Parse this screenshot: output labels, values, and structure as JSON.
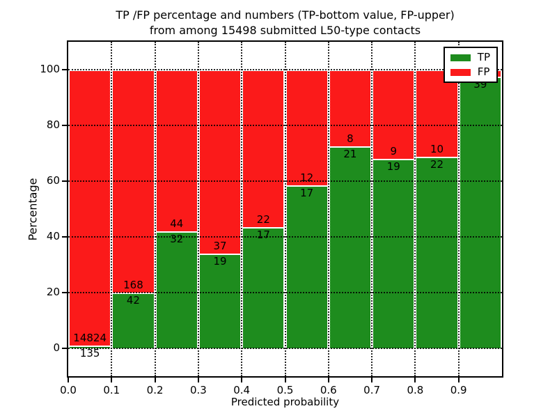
{
  "title": {
    "line1": "TP /FP percentage and numbers (TP-bottom value, FP-upper)",
    "line2": "from among 15498 submitted L50-type contacts"
  },
  "axes": {
    "xlabel": "Predicted probability",
    "ylabel": "Percentage",
    "x_tick_labels": [
      "0.0",
      "0.1",
      "0.2",
      "0.3",
      "0.4",
      "0.5",
      "0.6",
      "0.7",
      "0.8",
      "0.9"
    ],
    "x_tick_values": [
      0,
      0.1,
      0.2,
      0.3,
      0.4,
      0.5,
      0.6,
      0.7,
      0.8,
      0.9
    ],
    "y_tick_labels": [
      "0",
      "20",
      "40",
      "60",
      "80",
      "100"
    ],
    "y_tick_values": [
      0,
      20,
      40,
      60,
      80,
      100
    ]
  },
  "legend": {
    "position": "upper right",
    "items": [
      {
        "label": "TP",
        "color": "#1e8c1e"
      },
      {
        "label": "FP",
        "color": "#fb1a1a"
      }
    ]
  },
  "chart_data": {
    "type": "bar",
    "stacked": true,
    "title": "TP /FP percentage and numbers (TP-bottom value, FP-upper) from among 15498 submitted L50-type contacts",
    "xlabel": "Predicted probability",
    "ylabel": "Percentage",
    "xlim": [
      0,
      1.0
    ],
    "ylim": [
      -10,
      110
    ],
    "grid": "dotted black gridlines at every x and y tick, drawn over bars",
    "bar_edge_color": "#ffffff",
    "colors": {
      "tp": "#1e8c1e",
      "fp": "#fb1a1a"
    },
    "note": "Each bar stacks TP (green, bottom) and FP (red, top) to 100%; counts are printed at the TP/FP boundary (TP below, FP above). FP count of last bar is hidden behind the legend.",
    "bars": [
      {
        "bin": [
          0.0,
          0.1
        ],
        "tp_count": 135,
        "fp_count": 14824,
        "tp_pct": 0.9,
        "fp_pct": 99.1
      },
      {
        "bin": [
          0.1,
          0.2
        ],
        "tp_count": 42,
        "fp_count": 168,
        "tp_pct": 20.0,
        "fp_pct": 80.0
      },
      {
        "bin": [
          0.2,
          0.3
        ],
        "tp_count": 32,
        "fp_count": 44,
        "tp_pct": 42.1,
        "fp_pct": 57.9
      },
      {
        "bin": [
          0.3,
          0.4
        ],
        "tp_count": 19,
        "fp_count": 37,
        "tp_pct": 33.9,
        "fp_pct": 66.1
      },
      {
        "bin": [
          0.4,
          0.5
        ],
        "tp_count": 17,
        "fp_count": 22,
        "tp_pct": 43.6,
        "fp_pct": 56.4
      },
      {
        "bin": [
          0.5,
          0.6
        ],
        "tp_count": 17,
        "fp_count": 12,
        "tp_pct": 58.6,
        "fp_pct": 41.4
      },
      {
        "bin": [
          0.6,
          0.7
        ],
        "tp_count": 21,
        "fp_count": 8,
        "tp_pct": 72.4,
        "fp_pct": 27.6
      },
      {
        "bin": [
          0.7,
          0.8
        ],
        "tp_count": 19,
        "fp_count": 9,
        "tp_pct": 67.9,
        "fp_pct": 32.1
      },
      {
        "bin": [
          0.8,
          0.9
        ],
        "tp_count": 22,
        "fp_count": 10,
        "tp_pct": 68.8,
        "fp_pct": 31.2
      },
      {
        "bin": [
          0.9,
          1.0
        ],
        "tp_count": 39,
        "fp_count": null,
        "tp_pct": 97.5,
        "fp_pct": 2.5
      }
    ]
  }
}
